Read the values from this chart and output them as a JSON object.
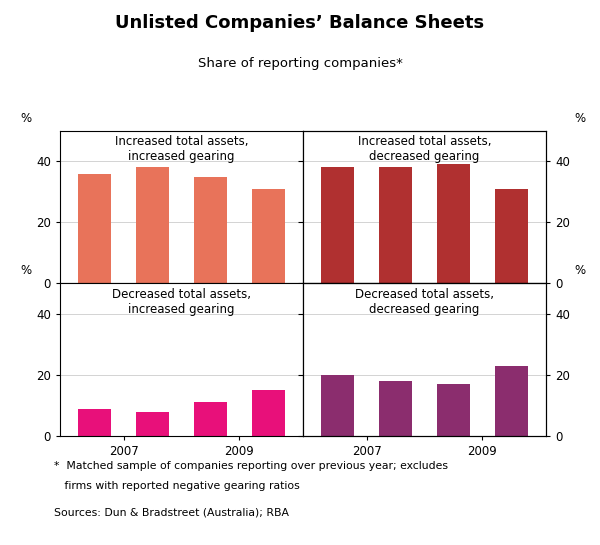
{
  "title": "Unlisted Companies’ Balance Sheets",
  "subtitle": "Share of reporting companies*",
  "footnote1": "*  Matched sample of companies reporting over previous year; excludes",
  "footnote2": "   firms with reported negative gearing ratios",
  "sources": "Sources: Dun & Bradstreet (Australia); RBA",
  "panels": [
    {
      "title": "Increased total assets,\nincreased gearing",
      "values": [
        36,
        38,
        35,
        31
      ],
      "color": "#E8735A",
      "position": "top-left"
    },
    {
      "title": "Increased total assets,\ndecreased gearing",
      "values": [
        38,
        38,
        39,
        31
      ],
      "color": "#B03030",
      "position": "top-right"
    },
    {
      "title": "Decreased total assets,\nincreased gearing",
      "values": [
        9,
        8,
        11,
        15
      ],
      "color": "#E8107A",
      "position": "bottom-left"
    },
    {
      "title": "Decreased total assets,\ndecreased gearing",
      "values": [
        20,
        18,
        17,
        23
      ],
      "color": "#8B2D6E",
      "position": "bottom-right"
    }
  ]
}
